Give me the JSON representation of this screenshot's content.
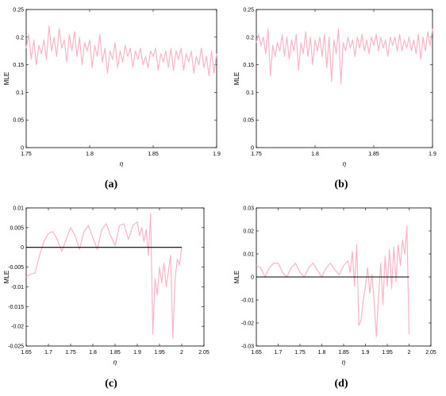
{
  "line_color": "#f9b4c6",
  "zero_line_color": "#000000",
  "chart_data": [
    {
      "type": "line",
      "label": "(a)",
      "xlabel": "η",
      "ylabel": "MLE",
      "xlim": [
        1.75,
        1.9
      ],
      "ylim": [
        0,
        0.25
      ],
      "x_ticks": [
        1.75,
        1.8,
        1.85,
        1.9
      ],
      "x_tick_labels": [
        "1.75",
        "1.8",
        "1.85",
        "1.9"
      ],
      "y_ticks": [
        0,
        0.05,
        0.1,
        0.15,
        0.2,
        0.25
      ],
      "y_tick_labels": [
        "0",
        "0.05",
        "0.1",
        "0.15",
        "0.2",
        "0.25"
      ],
      "zero_line": false,
      "x": [
        1.75,
        1.752,
        1.754,
        1.756,
        1.758,
        1.76,
        1.762,
        1.764,
        1.766,
        1.768,
        1.77,
        1.772,
        1.774,
        1.776,
        1.778,
        1.78,
        1.782,
        1.784,
        1.786,
        1.788,
        1.79,
        1.792,
        1.794,
        1.796,
        1.798,
        1.8,
        1.802,
        1.804,
        1.806,
        1.808,
        1.81,
        1.812,
        1.814,
        1.816,
        1.818,
        1.82,
        1.822,
        1.824,
        1.826,
        1.828,
        1.83,
        1.832,
        1.834,
        1.836,
        1.838,
        1.84,
        1.842,
        1.844,
        1.846,
        1.848,
        1.85,
        1.852,
        1.854,
        1.856,
        1.858,
        1.86,
        1.862,
        1.864,
        1.866,
        1.868,
        1.87,
        1.872,
        1.874,
        1.876,
        1.878,
        1.88,
        1.882,
        1.884,
        1.886,
        1.888,
        1.89,
        1.892,
        1.894,
        1.896,
        1.898,
        1.9
      ],
      "y": [
        0.18,
        0.205,
        0.16,
        0.195,
        0.15,
        0.185,
        0.17,
        0.195,
        0.16,
        0.22,
        0.175,
        0.2,
        0.165,
        0.215,
        0.18,
        0.195,
        0.155,
        0.205,
        0.175,
        0.21,
        0.165,
        0.2,
        0.15,
        0.19,
        0.175,
        0.195,
        0.145,
        0.185,
        0.165,
        0.205,
        0.155,
        0.18,
        0.135,
        0.175,
        0.16,
        0.19,
        0.145,
        0.175,
        0.155,
        0.185,
        0.165,
        0.18,
        0.145,
        0.175,
        0.16,
        0.18,
        0.15,
        0.165,
        0.145,
        0.175,
        0.165,
        0.18,
        0.14,
        0.17,
        0.155,
        0.175,
        0.145,
        0.18,
        0.14,
        0.175,
        0.16,
        0.18,
        0.14,
        0.17,
        0.155,
        0.175,
        0.135,
        0.165,
        0.15,
        0.18,
        0.145,
        0.165,
        0.13,
        0.175,
        0.135,
        0.17
      ]
    },
    {
      "type": "line",
      "label": "(b)",
      "xlabel": "η",
      "ylabel": "MLE",
      "xlim": [
        1.75,
        1.9
      ],
      "ylim": [
        0,
        0.25
      ],
      "x_ticks": [
        1.75,
        1.8,
        1.85,
        1.9
      ],
      "x_tick_labels": [
        "1.75",
        "1.8",
        "1.85",
        "1.9"
      ],
      "y_ticks": [
        0,
        0.05,
        0.1,
        0.15,
        0.2,
        0.25
      ],
      "y_tick_labels": [
        "0",
        "0.05",
        "0.1",
        "0.15",
        "0.2",
        "0.25"
      ],
      "zero_line": false,
      "x": [
        1.75,
        1.752,
        1.754,
        1.756,
        1.758,
        1.76,
        1.762,
        1.764,
        1.766,
        1.768,
        1.77,
        1.772,
        1.774,
        1.776,
        1.778,
        1.78,
        1.782,
        1.784,
        1.786,
        1.788,
        1.79,
        1.792,
        1.794,
        1.796,
        1.798,
        1.8,
        1.802,
        1.804,
        1.806,
        1.808,
        1.81,
        1.812,
        1.814,
        1.816,
        1.818,
        1.82,
        1.822,
        1.824,
        1.826,
        1.828,
        1.83,
        1.832,
        1.834,
        1.836,
        1.838,
        1.84,
        1.842,
        1.844,
        1.846,
        1.848,
        1.85,
        1.852,
        1.854,
        1.856,
        1.858,
        1.86,
        1.862,
        1.864,
        1.866,
        1.868,
        1.87,
        1.872,
        1.874,
        1.876,
        1.878,
        1.88,
        1.882,
        1.884,
        1.886,
        1.888,
        1.89,
        1.892,
        1.894,
        1.896,
        1.898,
        1.9
      ],
      "y": [
        0.19,
        0.205,
        0.185,
        0.2,
        0.17,
        0.215,
        0.13,
        0.185,
        0.165,
        0.19,
        0.175,
        0.205,
        0.165,
        0.2,
        0.16,
        0.195,
        0.175,
        0.205,
        0.14,
        0.19,
        0.17,
        0.21,
        0.165,
        0.2,
        0.15,
        0.195,
        0.175,
        0.2,
        0.165,
        0.205,
        0.145,
        0.2,
        0.12,
        0.195,
        0.17,
        0.215,
        0.115,
        0.19,
        0.175,
        0.2,
        0.18,
        0.195,
        0.165,
        0.2,
        0.18,
        0.205,
        0.175,
        0.195,
        0.17,
        0.2,
        0.185,
        0.205,
        0.175,
        0.2,
        0.18,
        0.195,
        0.165,
        0.2,
        0.185,
        0.2,
        0.175,
        0.205,
        0.175,
        0.195,
        0.18,
        0.2,
        0.175,
        0.195,
        0.17,
        0.205,
        0.16,
        0.2,
        0.175,
        0.21,
        0.185,
        0.215
      ]
    },
    {
      "type": "line",
      "label": "(c)",
      "xlabel": "η",
      "ylabel": "MLE",
      "xlim": [
        1.65,
        2.05
      ],
      "ylim": [
        -0.025,
        0.01
      ],
      "x_ticks": [
        1.65,
        1.7,
        1.75,
        1.8,
        1.85,
        1.9,
        1.95,
        2,
        2.05
      ],
      "x_tick_labels": [
        "1.65",
        "1.7",
        "1.75",
        "1.8",
        "1.85",
        "1.9",
        "1.95",
        "2",
        "2.05"
      ],
      "y_ticks": [
        -0.025,
        -0.02,
        -0.015,
        -0.01,
        -0.005,
        0,
        0.005,
        0.01
      ],
      "y_tick_labels": [
        "-0.025",
        "-0.02",
        "-0.015",
        "-0.01",
        "-0.005",
        "0",
        "0.005",
        "0.01"
      ],
      "zero_line": true,
      "zero_line_x": [
        1.65,
        2.0
      ],
      "x": [
        1.65,
        1.66,
        1.67,
        1.68,
        1.69,
        1.7,
        1.71,
        1.72,
        1.73,
        1.74,
        1.75,
        1.76,
        1.77,
        1.78,
        1.79,
        1.8,
        1.81,
        1.82,
        1.83,
        1.84,
        1.85,
        1.86,
        1.87,
        1.88,
        1.89,
        1.9,
        1.905,
        1.91,
        1.915,
        1.92,
        1.925,
        1.93,
        1.935,
        1.94,
        1.945,
        1.95,
        1.955,
        1.96,
        1.965,
        1.97,
        1.975,
        1.98,
        1.985,
        1.99,
        1.995,
        2.0
      ],
      "y": [
        -0.0075,
        -0.0068,
        -0.0065,
        -0.002,
        0.0015,
        0.0035,
        0.004,
        0.002,
        -0.001,
        0.002,
        0.005,
        0.003,
        -0.0005,
        0.004,
        0.0055,
        0.0025,
        -0.0005,
        0.0045,
        0.006,
        0.003,
        0.0005,
        0.0055,
        0.006,
        0.002,
        0.0055,
        0.0065,
        0.003,
        0.005,
        0.0015,
        0.0045,
        -0.002,
        0.0085,
        -0.022,
        -0.008,
        -0.012,
        -0.005,
        -0.009,
        -0.004,
        -0.01,
        -0.006,
        -0.002,
        -0.023,
        -0.008,
        -0.003,
        -0.0045,
        0.0
      ]
    },
    {
      "type": "line",
      "label": "(d)",
      "xlabel": "η",
      "ylabel": "MLE",
      "xlim": [
        1.65,
        2.05
      ],
      "ylim": [
        -0.03,
        0.03
      ],
      "x_ticks": [
        1.65,
        1.7,
        1.75,
        1.8,
        1.85,
        1.9,
        1.95,
        2,
        2.05
      ],
      "x_tick_labels": [
        "1.65",
        "1.7",
        "1.75",
        "1.8",
        "1.85",
        "1.9",
        "1.95",
        "2",
        "2.05"
      ],
      "y_ticks": [
        -0.03,
        -0.02,
        -0.01,
        0,
        0.01,
        0.02,
        0.03
      ],
      "y_tick_labels": [
        "-0.03",
        "-0.02",
        "-0.01",
        "0",
        "0.01",
        "0.02",
        "0.03"
      ],
      "zero_line": true,
      "zero_line_x": [
        1.65,
        2.0
      ],
      "x": [
        1.65,
        1.66,
        1.67,
        1.68,
        1.69,
        1.7,
        1.71,
        1.72,
        1.73,
        1.74,
        1.75,
        1.76,
        1.77,
        1.78,
        1.79,
        1.8,
        1.81,
        1.82,
        1.83,
        1.84,
        1.85,
        1.86,
        1.865,
        1.87,
        1.875,
        1.88,
        1.885,
        1.89,
        1.895,
        1.9,
        1.905,
        1.91,
        1.915,
        1.92,
        1.925,
        1.93,
        1.935,
        1.94,
        1.945,
        1.95,
        1.955,
        1.96,
        1.965,
        1.97,
        1.975,
        1.98,
        1.985,
        1.99,
        1.995,
        2.0
      ],
      "y": [
        0.005,
        0.004,
        0.0,
        0.004,
        0.006,
        0.006,
        0.002,
        0.0,
        0.004,
        0.006,
        0.002,
        0.0,
        0.004,
        0.006,
        0.003,
        0.0,
        0.004,
        0.006,
        0.003,
        0.001,
        0.005,
        0.007,
        0.002,
        0.011,
        -0.004,
        0.014,
        -0.021,
        -0.019,
        -0.01,
        -0.004,
        0.004,
        -0.007,
        0.001,
        -0.011,
        -0.026,
        -0.008,
        0.006,
        -0.012,
        0.009,
        -0.004,
        0.012,
        -0.005,
        0.013,
        -0.002,
        0.014,
        0.005,
        0.016,
        0.01,
        0.022,
        -0.025
      ]
    }
  ]
}
